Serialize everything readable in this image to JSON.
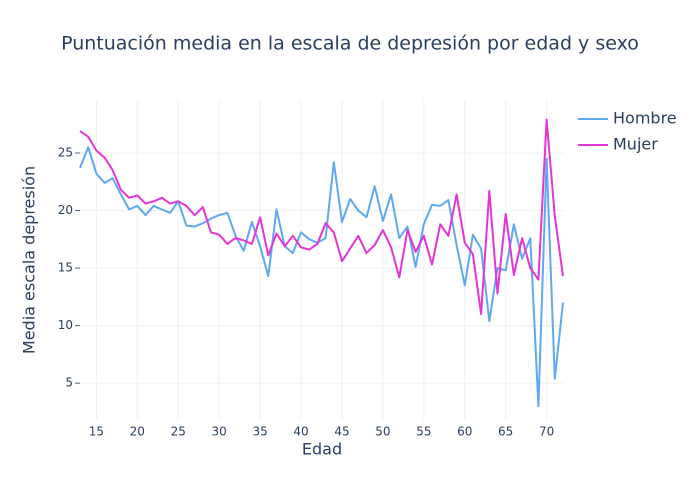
{
  "chart_data": {
    "type": "line",
    "title": "Puntuación media en la escala de depresión por edad y sexo",
    "xlabel": "Edad",
    "ylabel": "Media escala depresión",
    "x": [
      13,
      14,
      15,
      16,
      17,
      18,
      19,
      20,
      21,
      22,
      23,
      24,
      25,
      26,
      27,
      28,
      29,
      30,
      31,
      32,
      33,
      34,
      35,
      36,
      37,
      38,
      39,
      40,
      41,
      42,
      43,
      44,
      45,
      46,
      47,
      48,
      49,
      50,
      51,
      52,
      53,
      54,
      55,
      56,
      57,
      58,
      59,
      60,
      61,
      62,
      63,
      64,
      65,
      66,
      67,
      68,
      69,
      70,
      71,
      72
    ],
    "series": [
      {
        "name": "Hombre",
        "color": "#5fa9ee",
        "values": [
          23.7,
          25.5,
          23.2,
          22.4,
          22.8,
          21.4,
          20.1,
          20.4,
          19.6,
          20.4,
          20.1,
          19.8,
          20.8,
          18.7,
          18.6,
          18.9,
          19.3,
          19.6,
          19.8,
          17.8,
          16.5,
          19.0,
          16.9,
          14.3,
          20.1,
          16.9,
          16.3,
          18.1,
          17.5,
          17.2,
          17.6,
          24.2,
          19.0,
          21.0,
          20.0,
          19.4,
          22.1,
          19.1,
          21.4,
          17.6,
          18.6,
          15.1,
          18.8,
          20.5,
          20.4,
          20.9,
          17.0,
          13.5,
          17.9,
          16.7,
          10.4,
          15.0,
          14.8,
          18.8,
          15.8,
          17.6,
          3.0,
          24.5,
          5.4,
          12.0
        ]
      },
      {
        "name": "Mujer",
        "color": "#e535d6",
        "values": [
          26.9,
          26.4,
          25.2,
          24.6,
          23.5,
          21.8,
          21.1,
          21.3,
          20.6,
          20.8,
          21.1,
          20.6,
          20.8,
          20.4,
          19.6,
          20.3,
          18.1,
          17.9,
          17.1,
          17.6,
          17.4,
          17.1,
          19.4,
          16.1,
          18.0,
          16.9,
          17.8,
          16.8,
          16.6,
          17.1,
          18.9,
          18.1,
          15.6,
          16.7,
          17.8,
          16.3,
          17.0,
          18.3,
          16.8,
          14.2,
          18.3,
          16.4,
          17.8,
          15.3,
          18.8,
          17.8,
          21.4,
          17.2,
          16.2,
          11.0,
          21.7,
          12.8,
          19.7,
          14.4,
          17.6,
          15.0,
          14.0,
          27.9,
          19.5,
          14.3
        ]
      }
    ],
    "xlim": [
      13,
      72
    ],
    "ylim": [
      1.8,
      29.6
    ],
    "xticks": [
      15,
      20,
      25,
      30,
      35,
      40,
      45,
      50,
      55,
      60,
      65,
      70
    ],
    "yticks": [
      5,
      10,
      15,
      20,
      25
    ],
    "grid": true,
    "legend": "top-right"
  }
}
